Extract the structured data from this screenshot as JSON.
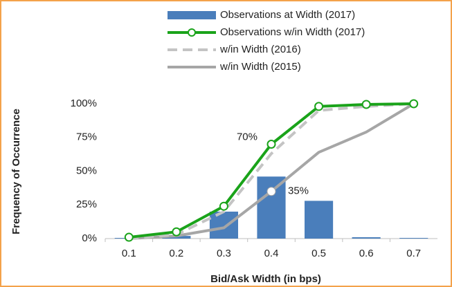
{
  "chart_data": {
    "type": "bar_line",
    "categories": [
      "0.1",
      "0.2",
      "0.3",
      "0.4",
      "0.5",
      "0.6",
      "0.7"
    ],
    "series": [
      {
        "name": "Observations at Width (2017)",
        "type": "bar",
        "color": "#4a7ebb",
        "values": [
          0.5,
          2,
          20,
          46,
          28,
          1,
          0.5
        ]
      },
      {
        "name": "Observations w/in Width (2017)",
        "type": "line",
        "style": "solid",
        "markers": true,
        "color": "#1aa31a",
        "values": [
          1,
          5,
          24,
          70,
          98,
          99.5,
          100
        ]
      },
      {
        "name": "w/in Width (2016)",
        "type": "line",
        "style": "dashed",
        "markers": false,
        "color": "#c4c4c4",
        "values": [
          0,
          3,
          20,
          63,
          95,
          98,
          100
        ]
      },
      {
        "name": "w/in Width (2015)",
        "type": "line",
        "style": "solid",
        "markers": false,
        "color": "#a6a6a6",
        "values": [
          0,
          2,
          8,
          35,
          64,
          79,
          100
        ]
      }
    ],
    "annotations": [
      "70%",
      "35%"
    ],
    "x_label": "Bid/Ask Width (in bps)",
    "y_label": "Frequency of Occurrence",
    "ylim": [
      0,
      100
    ],
    "yticks": [
      {
        "value": 0,
        "label": "0%"
      },
      {
        "value": 25,
        "label": "25%"
      },
      {
        "value": 50,
        "label": "50%"
      },
      {
        "value": 75,
        "label": "75%"
      },
      {
        "value": 100,
        "label": "100%"
      }
    ],
    "legend": "upper right",
    "grid": false
  }
}
